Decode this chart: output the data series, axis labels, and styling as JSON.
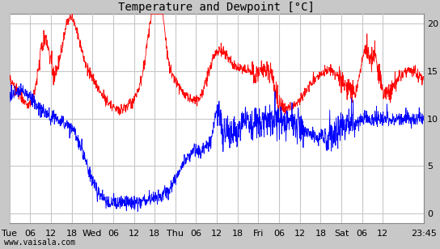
{
  "title": "Temperature and Dewpoint [°C]",
  "ylim": [
    -1,
    21
  ],
  "yticks": [
    0,
    5,
    10,
    15,
    20
  ],
  "bg_color": "#c8c8c8",
  "plot_bg_color": "#ffffff",
  "grid_color": "#c8c8c8",
  "temp_color": "#ff0000",
  "dew_color": "#0000ff",
  "watermark": "www.vaisala.com",
  "x_tick_labels": [
    "Tue",
    "06",
    "12",
    "18",
    "Wed",
    "06",
    "12",
    "18",
    "Thu",
    "06",
    "12",
    "18",
    "Fri",
    "06",
    "12",
    "18",
    "Sat",
    "06",
    "12",
    "23:45"
  ],
  "hour_ticks": [
    0,
    6,
    12,
    18,
    24,
    30,
    36,
    42,
    48,
    54,
    60,
    66,
    72,
    78,
    84,
    90,
    96,
    102,
    108,
    119.75
  ],
  "total_hours": 119.75,
  "figsize": [
    5.44,
    3.08
  ],
  "dpi": 100,
  "title_fontsize": 10,
  "tick_fontsize": 8,
  "watermark_fontsize": 7,
  "line_width": 0.6
}
